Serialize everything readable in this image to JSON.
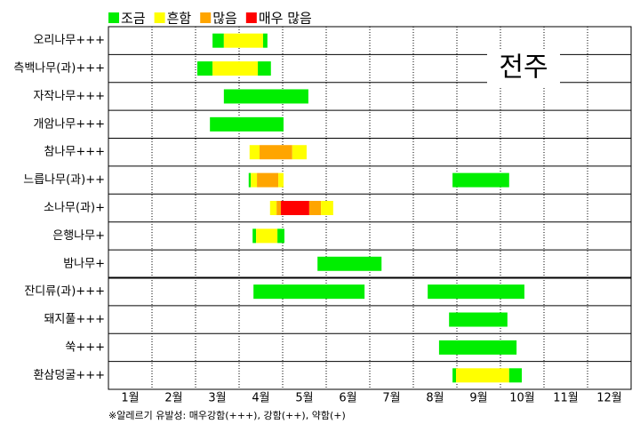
{
  "chart_data": {
    "type": "timeline",
    "title": "전주",
    "legend": [
      {
        "name": "조금",
        "color": "#00ee00"
      },
      {
        "name": "흔함",
        "color": "#ffff00"
      },
      {
        "name": "많음",
        "color": "#ffa500"
      },
      {
        "name": "매우 많음",
        "color": "#ff0000"
      }
    ],
    "categories": [
      "1월",
      "2월",
      "3월",
      "4월",
      "5월",
      "6월",
      "7월",
      "8월",
      "9월",
      "10월",
      "11월",
      "12월"
    ],
    "xlim": [
      1,
      13
    ],
    "separator_after_row": 8,
    "rows": [
      {
        "label": "오리나무+++",
        "segments": [
          {
            "start": 3.39,
            "end": 3.65,
            "level": 0
          },
          {
            "start": 3.65,
            "end": 4.55,
            "level": 1
          },
          {
            "start": 4.55,
            "end": 4.65,
            "level": 0
          }
        ]
      },
      {
        "label": "측백나무(과)+++",
        "segments": [
          {
            "start": 3.04,
            "end": 3.39,
            "level": 0
          },
          {
            "start": 3.39,
            "end": 4.43,
            "level": 1
          },
          {
            "start": 4.43,
            "end": 4.73,
            "level": 0
          }
        ]
      },
      {
        "label": "자작나무+++",
        "segments": [
          {
            "start": 3.65,
            "end": 5.59,
            "level": 0
          }
        ]
      },
      {
        "label": "개암나무+++",
        "segments": [
          {
            "start": 3.33,
            "end": 5.02,
            "level": 0
          }
        ]
      },
      {
        "label": "참나무+++",
        "segments": [
          {
            "start": 4.24,
            "end": 4.47,
            "level": 1
          },
          {
            "start": 4.47,
            "end": 5.22,
            "level": 2
          },
          {
            "start": 5.22,
            "end": 5.55,
            "level": 1
          }
        ]
      },
      {
        "label": "느릅나무(과)++",
        "segments": [
          {
            "start": 4.22,
            "end": 4.27,
            "level": 0
          },
          {
            "start": 4.27,
            "end": 4.41,
            "level": 1
          },
          {
            "start": 4.41,
            "end": 4.9,
            "level": 2
          },
          {
            "start": 4.9,
            "end": 5.02,
            "level": 1
          },
          {
            "start": 8.9,
            "end": 10.2,
            "level": 0
          }
        ]
      },
      {
        "label": "소나무(과)+",
        "segments": [
          {
            "start": 4.71,
            "end": 4.86,
            "level": 1
          },
          {
            "start": 4.86,
            "end": 4.96,
            "level": 2
          },
          {
            "start": 4.96,
            "end": 5.61,
            "level": 3
          },
          {
            "start": 5.61,
            "end": 5.88,
            "level": 2
          },
          {
            "start": 5.88,
            "end": 6.16,
            "level": 1
          }
        ]
      },
      {
        "label": "은행나무+",
        "segments": [
          {
            "start": 4.31,
            "end": 4.39,
            "level": 0
          },
          {
            "start": 4.39,
            "end": 4.88,
            "level": 1
          },
          {
            "start": 4.88,
            "end": 5.04,
            "level": 0
          }
        ]
      },
      {
        "label": "밤나무+",
        "segments": [
          {
            "start": 5.8,
            "end": 7.27,
            "level": 0
          }
        ]
      },
      {
        "label": "잔디류(과)+++",
        "segments": [
          {
            "start": 4.33,
            "end": 6.88,
            "level": 0
          },
          {
            "start": 8.33,
            "end": 10.55,
            "level": 0
          }
        ]
      },
      {
        "label": "돼지풀+++",
        "segments": [
          {
            "start": 8.82,
            "end": 10.16,
            "level": 0
          }
        ]
      },
      {
        "label": "쑥+++",
        "segments": [
          {
            "start": 8.59,
            "end": 10.37,
            "level": 0
          }
        ]
      },
      {
        "label": "환삼덩굴+++",
        "segments": [
          {
            "start": 8.9,
            "end": 8.98,
            "level": 0
          },
          {
            "start": 8.98,
            "end": 10.2,
            "level": 1
          },
          {
            "start": 10.2,
            "end": 10.49,
            "level": 0
          }
        ]
      }
    ],
    "footnote": "※알레르기 유발성: 매우강함(+++), 강함(++), 약함(+)"
  }
}
